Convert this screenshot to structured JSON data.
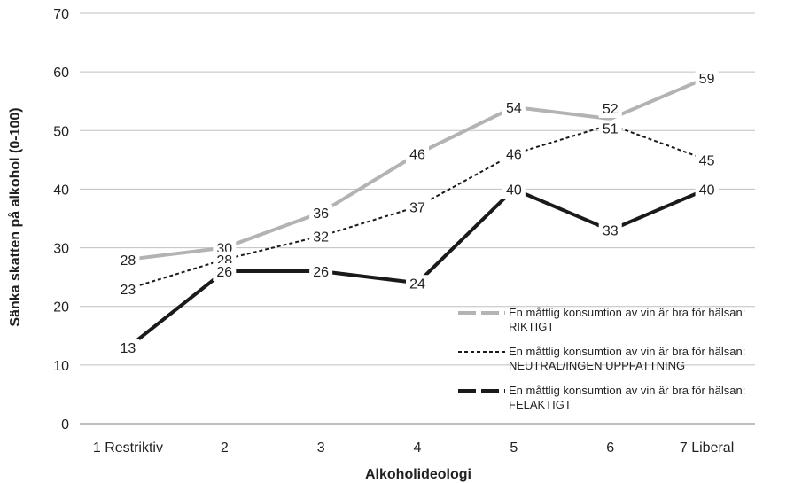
{
  "chart_data": {
    "type": "line",
    "categories": [
      "1 Restriktiv",
      "2",
      "3",
      "4",
      "5",
      "6",
      "7 Liberal"
    ],
    "series": [
      {
        "name_line1": "En måttlig konsumtion av vin är bra för hälsan:",
        "name_line2": "RIKTIGT",
        "values": [
          28,
          30,
          36,
          46,
          54,
          52,
          59
        ],
        "color": "#b3b3b3",
        "style": "solid-thick"
      },
      {
        "name_line1": "En måttlig konsumtion av vin är bra för hälsan:",
        "name_line2": "NEUTRAL/INGEN UPPFATTNING",
        "values": [
          23,
          28,
          32,
          37,
          46,
          51,
          45
        ],
        "color": "#1a1a1a",
        "style": "dotted"
      },
      {
        "name_line1": "En måttlig konsumtion av vin är bra för hälsan:",
        "name_line2": "FELAKTIGT",
        "values": [
          13,
          26,
          26,
          24,
          40,
          33,
          40
        ],
        "color": "#1a1a1a",
        "style": "solid-thick"
      }
    ],
    "xlabel": "Alkoholideologi",
    "ylabel": "Sänka skatten på alkohol (0-100)",
    "ylim": [
      0,
      70
    ],
    "yticks": [
      "0",
      "10",
      "20",
      "30",
      "40",
      "50",
      "60",
      "70"
    ],
    "grid": "horizontal",
    "legend": "bottom-right"
  }
}
